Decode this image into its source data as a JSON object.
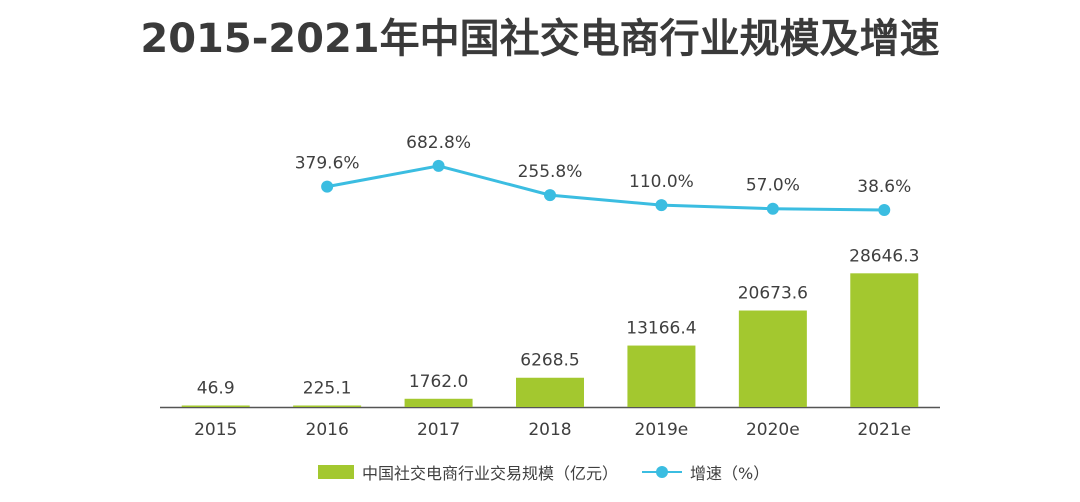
{
  "title": "2015-2021年中国社交电商行业规模及增速",
  "colors": {
    "bar": "#a3c82f",
    "line": "#3bbde1",
    "axis": "#555555",
    "label": "#3f3f3f"
  },
  "chart_data": {
    "type": "bar+line",
    "categories": [
      "2015",
      "2016",
      "2017",
      "2018",
      "2019e",
      "2020e",
      "2021e"
    ],
    "series": [
      {
        "name": "中国社交电商行业交易规模（亿元）",
        "type": "bar",
        "values": [
          46.9,
          225.1,
          1762.0,
          6268.5,
          13166.4,
          20673.6,
          28646.3
        ],
        "labels": [
          "46.9",
          "225.1",
          "1762.0",
          "6268.5",
          "13166.4",
          "20673.6",
          "28646.3"
        ]
      },
      {
        "name": "增速（%）",
        "type": "line",
        "values": [
          null,
          379.6,
          682.8,
          255.8,
          110.0,
          57.0,
          38.6
        ],
        "labels": [
          "",
          "379.6%",
          "682.8%",
          "255.8%",
          "110.0%",
          "57.0%",
          "38.6%"
        ]
      }
    ],
    "ylim_bar": [
      0,
      30000
    ],
    "ylim_line": [
      0,
      700
    ],
    "legend_position": "bottom",
    "grid": false
  }
}
